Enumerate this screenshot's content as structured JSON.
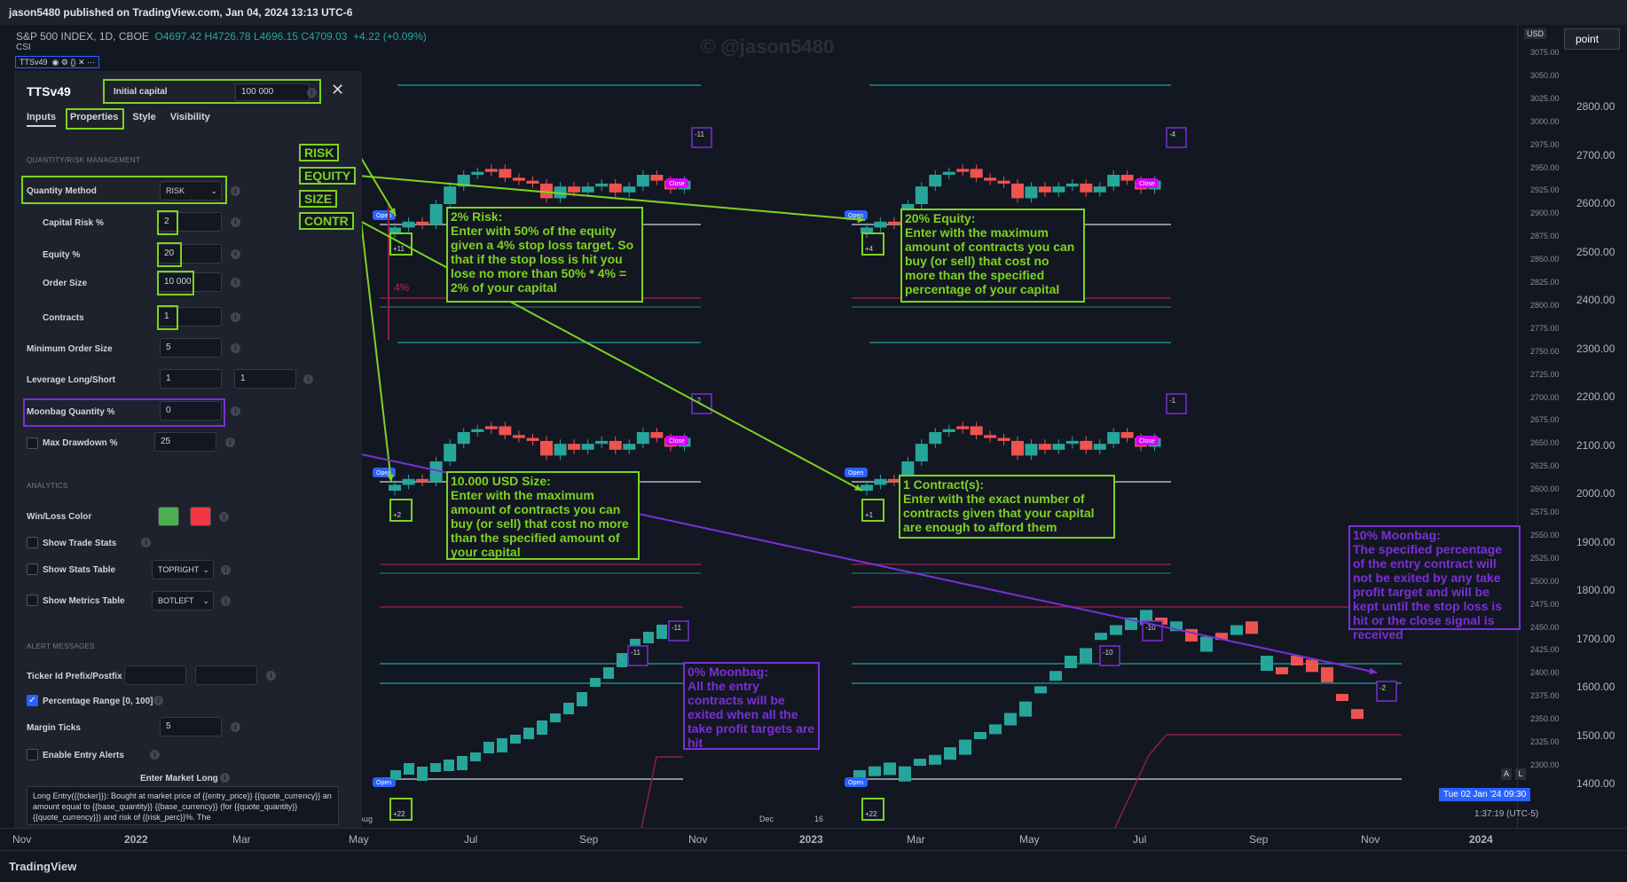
{
  "header": {
    "published": "jason5480 published on TradingView.com, Jan 04, 2024 13:13 UTC-6",
    "ticker": "S&P 500 INDEX, 1D, CBOE",
    "ohlc": "O4697.42 H4726.78 L4696.15 C4709.03",
    "change": "+4.22 (+0.09%)",
    "csi": "CSI",
    "indicator": "TTSv49"
  },
  "watermark": "© @jason5480",
  "price_axis": {
    "currency": "USD",
    "mode_button": "point",
    "labels": [
      "2800.00",
      "2700.00",
      "2600.00",
      "2500.00",
      "2400.00",
      "2300.00",
      "2200.00",
      "2100.00",
      "2000.00",
      "1900.00",
      "1800.00",
      "1700.00",
      "1600.00",
      "1500.00",
      "1400.00"
    ],
    "small_labels": [
      "3075.00",
      "3050.00",
      "3025.00",
      "3000.00",
      "2975.00",
      "2950.00",
      "2925.00",
      "2900.00",
      "2875.00",
      "2850.00",
      "2825.00",
      "2800.00",
      "2775.00",
      "2750.00",
      "2725.00",
      "2700.00",
      "2675.00",
      "2650.00",
      "2625.00",
      "2600.00",
      "2575.00",
      "2550.00",
      "2525.00",
      "2500.00",
      "2475.00",
      "2450.00",
      "2425.00",
      "2400.00",
      "2375.00",
      "2350.00",
      "2325.00",
      "2300.00"
    ],
    "date_tag": "Tue 02 Jan '24   09:30",
    "timezone": "1:37:19 (UTC-5)",
    "a_label": "A",
    "l_label": "L"
  },
  "time_axis": [
    "Nov",
    "2022",
    "Mar",
    "May",
    "Jul",
    "Sep",
    "Nov",
    "2023",
    "Mar",
    "May",
    "Jul",
    "Sep",
    "Nov",
    "2024"
  ],
  "inner_time_labels": [
    "Aug",
    "Dec",
    "16"
  ],
  "footer": {
    "brand": "TradingView"
  },
  "panel": {
    "title": "TTSv49",
    "tabs": [
      "Inputs",
      "Properties",
      "Style",
      "Visibility"
    ],
    "initial_capital_label": "Initial capital",
    "initial_capital_value": "100 000",
    "section_qty": "QUANTITY/RISK MANAGEMENT",
    "quantity_method_label": "Quantity Method",
    "quantity_method_value": "RISK",
    "capital_risk_label": "Capital Risk %",
    "capital_risk_value": "2",
    "equity_label": "Equity %",
    "equity_value": "20",
    "order_size_label": "Order Size",
    "order_size_value": "10 000",
    "contracts_label": "Contracts",
    "contracts_value": "1",
    "min_order_label": "Minimum Order Size",
    "min_order_value": "5",
    "leverage_label": "Leverage Long/Short",
    "leverage_long": "1",
    "leverage_short": "1",
    "moonbag_label": "Moonbag Quantity %",
    "moonbag_value": "0",
    "max_dd_label": "Max Drawdown %",
    "max_dd_value": "25",
    "section_analytics": "ANALYTICS",
    "winloss_label": "Win/Loss Color",
    "win_color": "#4caf50",
    "loss_color": "#f23645",
    "trade_stats_label": "Show Trade Stats",
    "stats_table_label": "Show Stats Table",
    "stats_table_value": "TOPRIGHT",
    "metrics_table_label": "Show Metrics Table",
    "metrics_table_value": "BOTLEFT",
    "section_alert": "ALERT MESSAGES",
    "ticker_prefix_label": "Ticker Id Prefix/Postfix",
    "pct_range_label": "Percentage Range [0, 100]",
    "margin_ticks_label": "Margin Ticks",
    "margin_ticks_value": "5",
    "entry_alerts_label": "Enable Entry Alerts",
    "enter_market_long": "Enter Market Long",
    "message": "Long Entry({{ticker}}): Bought at market price of {{entry_price}} {{quote_currency}} an amount equal to {{base_quantity}} {{base_currency}} (for {{quote_quantity}} {{quote_currency}}) and risk of {{risk_perc}}%. The"
  },
  "annotations": {
    "risk_tag": "RISK",
    "equity_tag": "EQUITY",
    "size_tag": "SIZE",
    "contr_tag": "CONTR",
    "risk_note": "2% Risk:\nEnter with 50% of the equity given a 4% stop loss target. So that if the stop loss is hit you lose no more than 50% * 4% = 2% of your capital",
    "equity_note": "20% Equity:\nEnter with the maximum amount of contracts you can buy (or sell) that cost no more than the specified percentage of your capital",
    "size_note": "10.000 USD Size:\nEnter with the maximum amount of contracts you can buy (or sell) that cost no more than the specified amount of your capital",
    "contr_note": "1 Contract(s):\nEnter with the exact number of contracts given that your capital are enough to afford them",
    "moon0_note": "0% Moonbag:\nAll the entry contracts will be exited when all the take profit targets are hit",
    "moon10_note": "10% Moonbag:\nThe specified percentage of the entry contract will not be exited by any take profit target and will be kept until the stop loss is hit or the close signal is received",
    "pct4": "4%",
    "open": "Open",
    "close": "Close",
    "qty_labels": [
      "+11",
      "+4",
      "+2",
      "+1",
      "+22",
      "+22"
    ],
    "exit_labels": [
      "-11",
      "-4",
      "-2",
      "-1",
      "-11",
      "-11",
      "-10",
      "-10",
      "-2"
    ]
  },
  "colors": {
    "bull": "#26a69a",
    "bear": "#ef5350",
    "annotation_green": "#7cd320",
    "annotation_purple": "#7b2fd6",
    "background": "#131722",
    "panel": "#1e222d"
  }
}
